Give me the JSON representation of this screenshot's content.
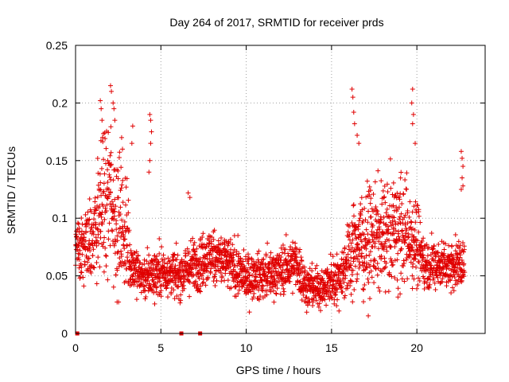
{
  "chart_data": {
    "type": "scatter",
    "title": "Day 264 of 2017, SRMTID for receiver prds",
    "xlabel": "GPS time / hours",
    "ylabel": "SRMTID / TECUs",
    "xlim": [
      0,
      24
    ],
    "ylim": [
      0,
      0.25
    ],
    "xticks": [
      0,
      5,
      10,
      15,
      20
    ],
    "yticks": [
      0,
      0.05,
      0.1,
      0.15,
      0.2,
      0.25
    ],
    "xtick_labels": [
      "0",
      "5",
      "10",
      "15",
      "20"
    ],
    "ytick_labels": [
      "0",
      "0.05",
      "0.1",
      "0.15",
      "0.2",
      "0.25"
    ],
    "grid": true,
    "marker": "+",
    "color": "#e00000",
    "series": [
      {
        "name": "SRMTID",
        "profile": [
          [
            0.0,
            0.075,
            0.015
          ],
          [
            0.5,
            0.075,
            0.022
          ],
          [
            1.0,
            0.082,
            0.025
          ],
          [
            1.5,
            0.11,
            0.04
          ],
          [
            2.0,
            0.12,
            0.045
          ],
          [
            2.5,
            0.1,
            0.04
          ],
          [
            3.0,
            0.08,
            0.035
          ],
          [
            3.3,
            0.06,
            0.015
          ],
          [
            4.0,
            0.048,
            0.013
          ],
          [
            5.0,
            0.055,
            0.015
          ],
          [
            6.0,
            0.05,
            0.013
          ],
          [
            7.0,
            0.06,
            0.016
          ],
          [
            8.0,
            0.068,
            0.016
          ],
          [
            9.0,
            0.06,
            0.016
          ],
          [
            10.0,
            0.048,
            0.013
          ],
          [
            11.0,
            0.05,
            0.013
          ],
          [
            12.0,
            0.055,
            0.014
          ],
          [
            13.0,
            0.06,
            0.016
          ],
          [
            13.5,
            0.04,
            0.012
          ],
          [
            14.5,
            0.04,
            0.012
          ],
          [
            15.5,
            0.05,
            0.015
          ],
          [
            16.5,
            0.08,
            0.03
          ],
          [
            17.0,
            0.08,
            0.03
          ],
          [
            18.0,
            0.085,
            0.03
          ],
          [
            19.0,
            0.09,
            0.032
          ],
          [
            20.0,
            0.08,
            0.025
          ],
          [
            20.5,
            0.06,
            0.014
          ],
          [
            22.8,
            0.06,
            0.014
          ]
        ],
        "spikes": [
          [
            1.45,
            0.202
          ],
          [
            1.5,
            0.195
          ],
          [
            1.55,
            0.185
          ],
          [
            2.05,
            0.215
          ],
          [
            2.1,
            0.21
          ],
          [
            2.2,
            0.2
          ],
          [
            2.25,
            0.195
          ],
          [
            2.3,
            0.185
          ],
          [
            2.7,
            0.17
          ],
          [
            2.75,
            0.16
          ],
          [
            3.35,
            0.18
          ],
          [
            3.3,
            0.165
          ],
          [
            4.35,
            0.19
          ],
          [
            4.4,
            0.185
          ],
          [
            4.45,
            0.175
          ],
          [
            4.4,
            0.165
          ],
          [
            4.35,
            0.15
          ],
          [
            4.3,
            0.14
          ],
          [
            6.6,
            0.122
          ],
          [
            6.7,
            0.118
          ],
          [
            16.2,
            0.212
          ],
          [
            16.25,
            0.205
          ],
          [
            16.3,
            0.192
          ],
          [
            16.35,
            0.182
          ],
          [
            16.5,
            0.172
          ],
          [
            16.6,
            0.165
          ],
          [
            19.75,
            0.212
          ],
          [
            19.7,
            0.2
          ],
          [
            19.8,
            0.19
          ],
          [
            19.75,
            0.182
          ],
          [
            19.9,
            0.165
          ],
          [
            22.6,
            0.158
          ],
          [
            22.65,
            0.152
          ],
          [
            22.7,
            0.145
          ],
          [
            22.65,
            0.135
          ],
          [
            22.7,
            0.128
          ],
          [
            22.6,
            0.125
          ]
        ],
        "baseline_x": [
          0.1,
          6.2,
          7.3
        ]
      }
    ]
  }
}
